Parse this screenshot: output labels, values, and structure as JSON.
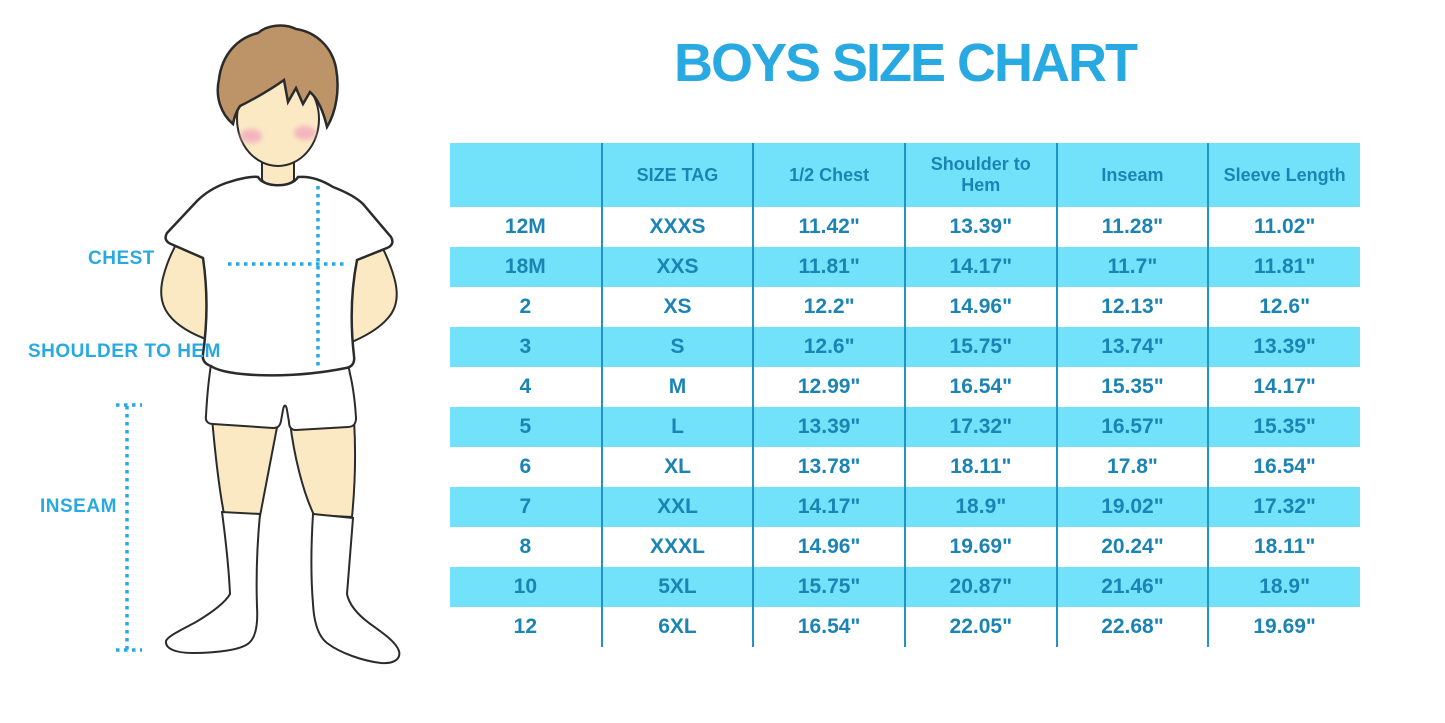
{
  "title": "BOYS SIZE CHART",
  "colors": {
    "accent_blue": "#29A9E2",
    "stripe_cyan": "#72E1FA",
    "cell_text": "#1B84B4",
    "divider": "#2095C5",
    "skin": "#FBE9C4",
    "hair": "#BD9468",
    "blush": "#F3A8BC",
    "outline": "#2B2B2B"
  },
  "figure": {
    "labels": {
      "chest": "CHEST",
      "shoulder_to_hem": "SHOULDER TO HEM",
      "inseam": "INSEAM"
    }
  },
  "chart_data": {
    "type": "table",
    "title": "BOYS SIZE CHART",
    "columns": [
      "",
      "SIZE TAG",
      "1/2 Chest",
      "Shoulder to Hem",
      "Inseam",
      "Sleeve Length"
    ],
    "rows": [
      [
        "12M",
        "XXXS",
        "11.42\"",
        "13.39\"",
        "11.28\"",
        "11.02\""
      ],
      [
        "18M",
        "XXS",
        "11.81\"",
        "14.17\"",
        "11.7\"",
        "11.81\""
      ],
      [
        "2",
        "XS",
        "12.2\"",
        "14.96\"",
        "12.13\"",
        "12.6\""
      ],
      [
        "3",
        "S",
        "12.6\"",
        "15.75\"",
        "13.74\"",
        "13.39\""
      ],
      [
        "4",
        "M",
        "12.99\"",
        "16.54\"",
        "15.35\"",
        "14.17\""
      ],
      [
        "5",
        "L",
        "13.39\"",
        "17.32\"",
        "16.57\"",
        "15.35\""
      ],
      [
        "6",
        "XL",
        "13.78\"",
        "18.11\"",
        "17.8\"",
        "16.54\""
      ],
      [
        "7",
        "XXL",
        "14.17\"",
        "18.9\"",
        "19.02\"",
        "17.32\""
      ],
      [
        "8",
        "XXXL",
        "14.96\"",
        "19.69\"",
        "20.24\"",
        "18.11\""
      ],
      [
        "10",
        "5XL",
        "15.75\"",
        "20.87\"",
        "21.46\"",
        "18.9\""
      ],
      [
        "12",
        "6XL",
        "16.54\"",
        "22.05\"",
        "22.68\"",
        "19.69\""
      ]
    ],
    "layout": {
      "striped": true,
      "stripe_pattern": "header and alternating rows cyan, others white",
      "grid": "vertical column dividers only, no outer border"
    }
  }
}
